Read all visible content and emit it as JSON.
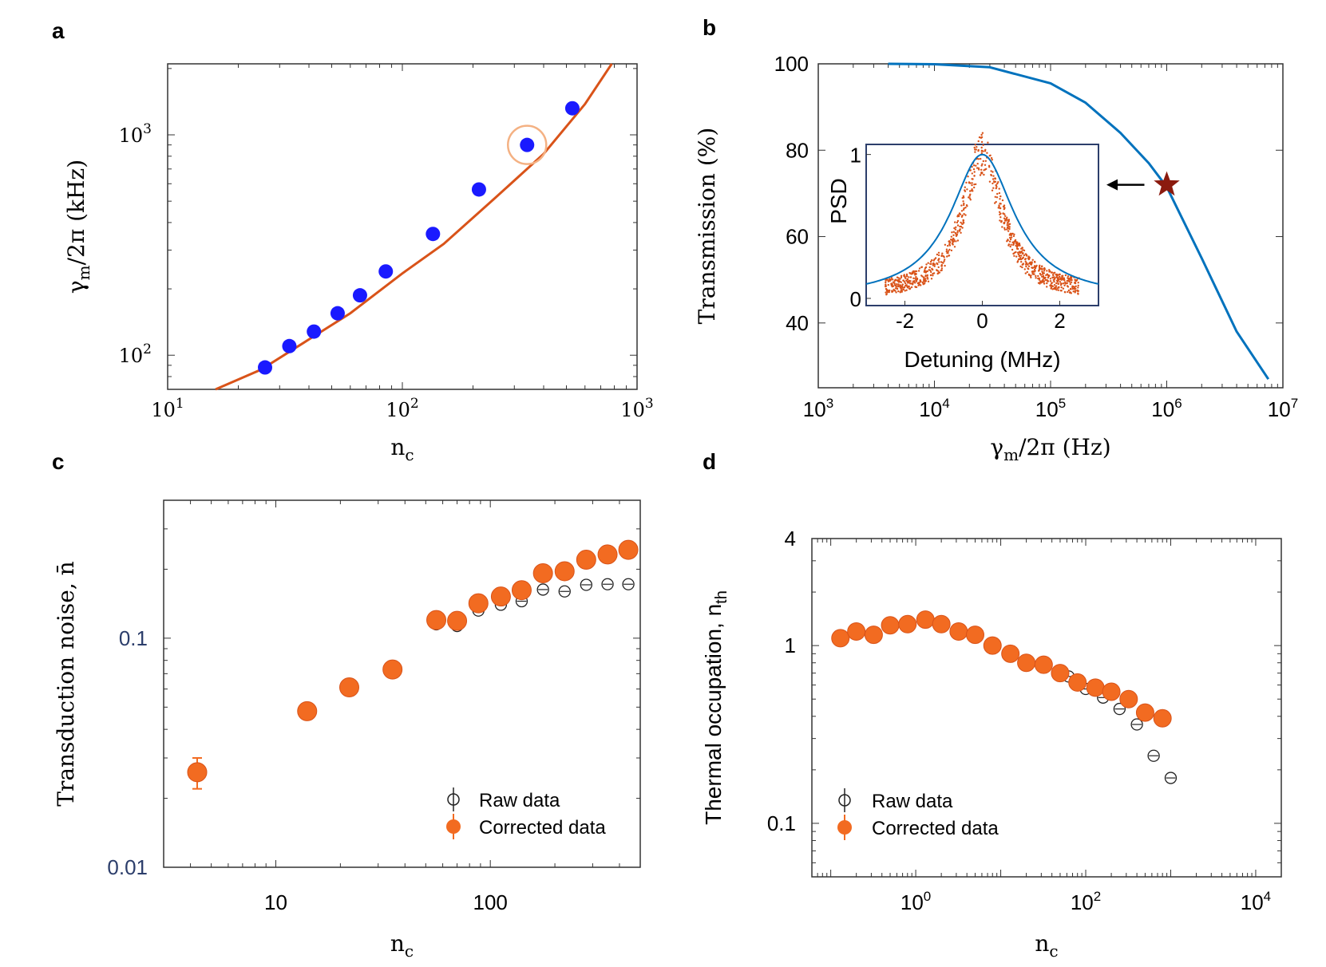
{
  "chart_data": [
    {
      "panel": "a",
      "type": "scatter",
      "xscale": "log",
      "yscale": "log",
      "xlim": [
        10,
        1000
      ],
      "ylim": [
        70,
        2100
      ],
      "xticks": [
        {
          "value": 10,
          "base": "10",
          "exp": "1"
        },
        {
          "value": 100,
          "base": "10",
          "exp": "2"
        },
        {
          "value": 1000,
          "base": "10",
          "exp": "3"
        }
      ],
      "yticks": [
        {
          "value": 100,
          "base": "10",
          "exp": "2"
        },
        {
          "value": 1000,
          "base": "10",
          "exp": "3"
        }
      ],
      "xlabel": "n",
      "xlabel_sub": "c",
      "ylabel_main": "γ",
      "ylabel_sub": "m",
      "ylabel_rest": "/2π (kHz)",
      "points": {
        "x": [
          26,
          33,
          42,
          53,
          66,
          85,
          135,
          212,
          340,
          530
        ],
        "y": [
          88,
          110,
          128,
          155,
          187,
          240,
          355,
          565,
          900,
          1320
        ]
      },
      "fit": {
        "x": [
          16,
          25,
          40,
          60,
          100,
          150,
          250,
          400,
          600,
          780
        ],
        "y": [
          70,
          86,
          118,
          155,
          235,
          320,
          520,
          820,
          1380,
          2100
        ]
      },
      "highlight": {
        "x": 340,
        "y": 900
      },
      "colors": {
        "points": "#1a1aff",
        "fit": "#d95319",
        "highlight": "#f4b183"
      }
    },
    {
      "panel": "b",
      "type": "line",
      "xscale": "log",
      "xlim": [
        1000,
        10000000
      ],
      "ylim": [
        25,
        100
      ],
      "xticks": [
        {
          "value": 1000,
          "base": "10",
          "exp": "3"
        },
        {
          "value": 10000,
          "base": "10",
          "exp": "4"
        },
        {
          "value": 100000,
          "base": "10",
          "exp": "5"
        },
        {
          "value": 1000000,
          "base": "10",
          "exp": "6"
        },
        {
          "value": 10000000,
          "base": "10",
          "exp": "7"
        }
      ],
      "yticks": [
        100,
        80,
        60,
        40
      ],
      "xlabel_main": "γ",
      "xlabel_sub": "m",
      "xlabel_rest": "/2π (Hz)",
      "ylabel": "Transmission (%)",
      "curve": {
        "x": [
          4000,
          10000,
          30000,
          100000,
          200000,
          400000,
          700000,
          1000000,
          2000000,
          4000000,
          7500000
        ],
        "y": [
          100,
          99.9,
          99.2,
          95.5,
          91,
          84,
          77,
          71.5,
          55,
          38,
          27
        ]
      },
      "star": {
        "x": 1000000,
        "y": 72
      },
      "colors": {
        "curve": "#0072bd",
        "star": "#8b1a0e"
      },
      "inset": {
        "xlabel": "Detuning (MHz)",
        "ylabel": "PSD",
        "xlim": [
          -3,
          3
        ],
        "ylim": [
          -0.05,
          1.07
        ],
        "xticks": [
          -2,
          0,
          2
        ],
        "yticks": [
          1,
          0
        ],
        "lorentz_width_mhz": 1.0,
        "data_width_mhz": 0.6,
        "colors": {
          "fit": "#0072bd",
          "data": "#d95319"
        }
      }
    },
    {
      "panel": "c",
      "type": "scatter",
      "xscale": "log",
      "yscale": "log",
      "xlim": [
        3,
        500
      ],
      "ylim": [
        0.01,
        0.4
      ],
      "xticks": [
        10,
        100
      ],
      "yticks": [
        0.1,
        0.01
      ],
      "xlabel": "n",
      "xlabel_sub": "c",
      "ylabel": "Transduction noise, n̄",
      "series": [
        {
          "name": "Raw data",
          "x": [
            4.3,
            56,
            70,
            88,
            112,
            140,
            176,
            222,
            280,
            352,
            440
          ],
          "y": [
            0.026,
            0.115,
            0.113,
            0.132,
            0.14,
            0.145,
            0.163,
            0.16,
            0.171,
            0.172,
            0.172
          ]
        },
        {
          "name": "Corrected data",
          "x": [
            4.3,
            14,
            22,
            35,
            56,
            70,
            88,
            112,
            140,
            176,
            222,
            280,
            352,
            440
          ],
          "y": [
            0.026,
            0.048,
            0.061,
            0.073,
            0.12,
            0.119,
            0.142,
            0.152,
            0.162,
            0.192,
            0.196,
            0.22,
            0.232,
            0.243
          ]
        }
      ],
      "colors": {
        "raw": "#222222",
        "corrected": "#f26b21"
      }
    },
    {
      "panel": "d",
      "type": "scatter",
      "xscale": "log",
      "yscale": "log",
      "xlim": [
        0.06,
        20000
      ],
      "ylim": [
        0.05,
        4
      ],
      "xticks": [
        {
          "value": 1,
          "base": "10",
          "exp": "0"
        },
        {
          "value": 100,
          "base": "10",
          "exp": "2"
        },
        {
          "value": 10000,
          "base": "10",
          "exp": "4"
        }
      ],
      "yticks": [
        4,
        1,
        0.1
      ],
      "xlabel": "n",
      "xlabel_sub": "c",
      "ylabel_main": "Thermal occupation, n",
      "ylabel_sub": "th",
      "series": [
        {
          "name": "Raw data",
          "x": [
            63,
            100,
            160,
            250,
            400,
            630,
            1000
          ],
          "y": [
            0.67,
            0.57,
            0.51,
            0.44,
            0.36,
            0.24,
            0.18
          ]
        },
        {
          "name": "Corrected data",
          "x": [
            0.13,
            0.2,
            0.32,
            0.5,
            0.8,
            1.3,
            2,
            3.2,
            5,
            8,
            13,
            20,
            32,
            50,
            80,
            130,
            200,
            320,
            500,
            800
          ],
          "y": [
            1.1,
            1.2,
            1.15,
            1.3,
            1.32,
            1.4,
            1.32,
            1.2,
            1.15,
            1.0,
            0.9,
            0.8,
            0.78,
            0.7,
            0.62,
            0.58,
            0.55,
            0.5,
            0.42,
            0.39
          ]
        }
      ],
      "colors": {
        "raw": "#222222",
        "corrected": "#f26b21"
      }
    }
  ],
  "panels": {
    "a": "a",
    "b": "b",
    "c": "c",
    "d": "d"
  },
  "legend": {
    "raw": "Raw data",
    "corrected": "Corrected data"
  }
}
